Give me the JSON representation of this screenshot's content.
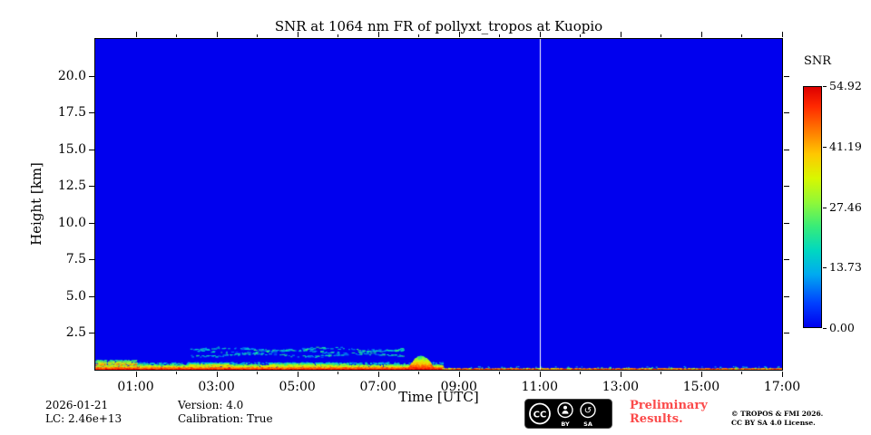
{
  "chart_data": {
    "type": "heatmap",
    "title": "SNR at 1064 nm FR of pollyxt_tropos at Kuopio",
    "xlabel": "Time [UTC]",
    "ylabel": "Height [km]",
    "colorbar_label": "SNR",
    "x_range": [
      0,
      17
    ],
    "y_range": [
      0,
      22.5
    ],
    "x_tick_hours": [
      1,
      3,
      5,
      7,
      9,
      11,
      13,
      15,
      17
    ],
    "x_tick_labels": [
      "01:00",
      "03:00",
      "05:00",
      "07:00",
      "09:00",
      "11:00",
      "13:00",
      "15:00",
      "17:00"
    ],
    "y_tick_values": [
      2.5,
      5.0,
      7.5,
      10.0,
      12.5,
      15.0,
      17.5,
      20.0
    ],
    "y_tick_labels": [
      "2.5",
      "5.0",
      "7.5",
      "10.0",
      "12.5",
      "15.0",
      "17.5",
      "20.0"
    ],
    "value_range": [
      0,
      54.92
    ],
    "colorbar_ticks": [
      {
        "value": 54.92,
        "label": "54.92"
      },
      {
        "value": 41.19,
        "label": "41.19"
      },
      {
        "value": 27.46,
        "label": "27.46"
      },
      {
        "value": 13.73,
        "label": "13.73"
      },
      {
        "value": 0.0,
        "label": "0.00"
      }
    ],
    "background_value": 0,
    "colormap_stops": [
      {
        "pos": 0.0,
        "color": "#0000ee"
      },
      {
        "pos": 0.1,
        "color": "#0040ff"
      },
      {
        "pos": 0.22,
        "color": "#00aaf0"
      },
      {
        "pos": 0.32,
        "color": "#00d8c0"
      },
      {
        "pos": 0.42,
        "color": "#38ec78"
      },
      {
        "pos": 0.52,
        "color": "#90f838"
      },
      {
        "pos": 0.62,
        "color": "#d8f800"
      },
      {
        "pos": 0.72,
        "color": "#ffc800"
      },
      {
        "pos": 0.82,
        "color": "#ff7800"
      },
      {
        "pos": 0.92,
        "color": "#ff2800"
      },
      {
        "pos": 1.0,
        "color": "#dd0000"
      }
    ],
    "features": [
      {
        "type": "band",
        "t0": 0.0,
        "t1": 8.6,
        "h0": 0.0,
        "h1": 0.15,
        "density": 4.0,
        "snr0": 47,
        "snr1": 55
      },
      {
        "type": "band",
        "t0": 0.0,
        "t1": 8.6,
        "h0": 0.12,
        "h1": 0.34,
        "density": 1.3,
        "snr0": 27,
        "snr1": 50
      },
      {
        "type": "band",
        "t0": 0.0,
        "t1": 8.6,
        "h0": 0.3,
        "h1": 0.52,
        "density": 0.45,
        "snr0": 11,
        "snr1": 30
      },
      {
        "type": "band",
        "t0": 0.0,
        "t1": 1.0,
        "h0": 0.35,
        "h1": 0.68,
        "density": 0.8,
        "snr0": 19,
        "snr1": 44
      },
      {
        "type": "band",
        "t0": 2.3,
        "t1": 3.3,
        "h0": 0.3,
        "h1": 0.5,
        "density": 0.9,
        "snr0": 16,
        "snr1": 41
      },
      {
        "type": "band",
        "t0": 4.3,
        "t1": 6.2,
        "h0": 0.3,
        "h1": 0.5,
        "density": 0.8,
        "snr0": 16,
        "snr1": 38
      },
      {
        "type": "mound",
        "t": 8.05,
        "half_w": 0.32,
        "h_peak": 0.95,
        "density": 3.0,
        "snr0": 22,
        "snr1": 55
      },
      {
        "type": "streaks",
        "t0": 2.35,
        "t1": 7.6,
        "levels": [
          1.42,
          1.25,
          1.02
        ],
        "amp": 0.1,
        "thickness": 0.07,
        "density": 0.55,
        "snr0": 7,
        "snr1": 23
      },
      {
        "type": "band",
        "t0": 8.6,
        "t1": 17.0,
        "h0": 0.0,
        "h1": 0.1,
        "density": 2.5,
        "snr0": 41,
        "snr1": 55
      },
      {
        "type": "band",
        "t0": 8.6,
        "t1": 17.0,
        "h0": 0.08,
        "h1": 0.25,
        "density": 0.08,
        "snr0": 11,
        "snr1": 33
      },
      {
        "type": "vline",
        "t": 11.0,
        "color": "#ffffff",
        "width": 1
      }
    ]
  },
  "footer": {
    "date": "2026-01-21",
    "lc": "LC: 2.46e+13",
    "version": "Version: 4.0",
    "calibration": "Calibration: True",
    "preliminary_line1": "Preliminary",
    "preliminary_line2": "Results.",
    "preliminary_color": "#fb4a4a",
    "copyright_line1": "© TROPOS & FMI 2026.",
    "copyright_line2": "CC BY SA 4.0 License.",
    "badge_cc": "CC",
    "badge_by": "BY",
    "badge_sa": "SA"
  }
}
